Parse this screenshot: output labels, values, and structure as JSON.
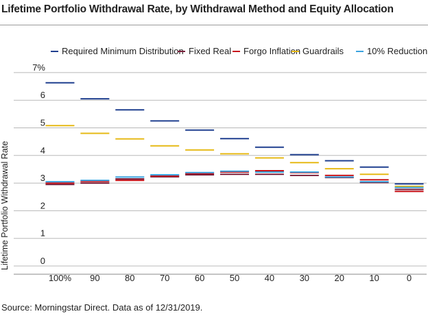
{
  "title": "Lifetime Portfolio Withdrawal Rate, by Withdrawal Method and Equity Allocation",
  "source": "Source: Morningstar Direct. Data as of 12/31/2019.",
  "chart_data": {
    "type": "bar",
    "subtype": "horizontal-dash markers per category",
    "title": "Lifetime Portfolio Withdrawal Rate, by Withdrawal Method and Equity Allocation",
    "xlabel": "",
    "ylabel": "Lifetime Portfolio Withdrawal Rate",
    "ylim": [
      -0.2,
      7.2
    ],
    "yticks": [
      0,
      1,
      2,
      3,
      4,
      5,
      6,
      7
    ],
    "ytick_labels": [
      "0",
      "1",
      "2",
      "3",
      "4",
      "5",
      "6",
      "7%"
    ],
    "categories": [
      "100%",
      "90",
      "80",
      "70",
      "60",
      "50",
      "40",
      "30",
      "20",
      "10",
      "0"
    ],
    "grid": "horizontal",
    "legend_position": "top",
    "series": [
      {
        "name": "Required Minimum Distribution",
        "color": "#1f3f8f",
        "values": [
          6.63,
          6.05,
          5.65,
          5.25,
          4.92,
          4.61,
          4.3,
          4.03,
          3.81,
          3.58,
          2.97
        ]
      },
      {
        "name": "Fixed Real",
        "color": "#7a1f3a",
        "values": [
          2.95,
          3.0,
          3.15,
          3.23,
          3.3,
          3.32,
          3.32,
          3.28,
          3.2,
          3.02,
          2.77
        ]
      },
      {
        "name": "Forgo Inflation",
        "color": "#c8151b",
        "values": [
          3.0,
          3.06,
          3.1,
          3.26,
          3.35,
          3.4,
          3.45,
          3.38,
          3.28,
          3.12,
          2.7
        ]
      },
      {
        "name": "Guardrails",
        "color": "#e6b915",
        "values": [
          5.08,
          4.8,
          4.6,
          4.35,
          4.2,
          4.06,
          3.91,
          3.74,
          3.52,
          3.32,
          2.88
        ]
      },
      {
        "name": "10% Reduction",
        "color": "#3aa3df",
        "values": [
          3.05,
          3.1,
          3.22,
          3.3,
          3.38,
          3.43,
          3.4,
          3.4,
          3.22,
          3.05,
          2.84
        ]
      }
    ]
  }
}
